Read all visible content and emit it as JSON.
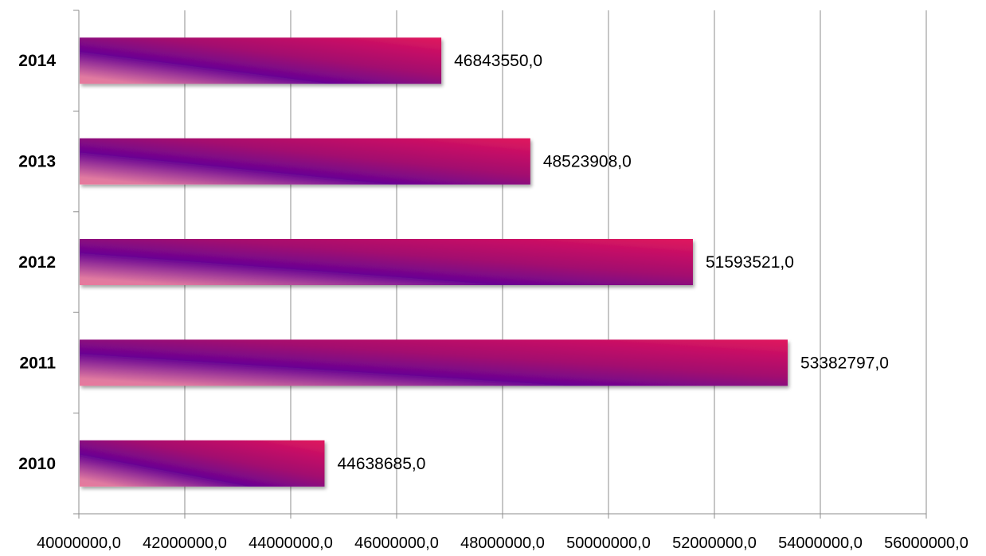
{
  "chart_data": {
    "type": "bar",
    "orientation": "horizontal",
    "categories": [
      "2010",
      "2011",
      "2012",
      "2013",
      "2014"
    ],
    "series": [
      {
        "values": [
          44638685.0,
          53382797.0,
          51593521.0,
          48523908.0,
          46843550.0
        ],
        "labels": [
          "44638685,0",
          "53382797,0",
          "51593521,0",
          "48523908,0",
          "46843550,0"
        ]
      }
    ],
    "xlim": [
      40000000,
      56000000
    ],
    "x_ticks": [
      40000000,
      42000000,
      44000000,
      46000000,
      48000000,
      50000000,
      52000000,
      54000000,
      56000000
    ],
    "x_tick_labels": [
      "40000000,0",
      "42000000,0",
      "44000000,0",
      "46000000,0",
      "48000000,0",
      "50000000,0",
      "52000000,0",
      "54000000,0",
      "56000000,0"
    ],
    "grid": "vertical",
    "legend": "none",
    "colors": {
      "gradient_start": "#e8799c",
      "gradient_mid": "#6a0593",
      "gradient_mid2": "#a30a6f",
      "gradient_end": "#e0155e",
      "grid": "#8c8c8c",
      "axis": "#8c8c8c"
    }
  }
}
